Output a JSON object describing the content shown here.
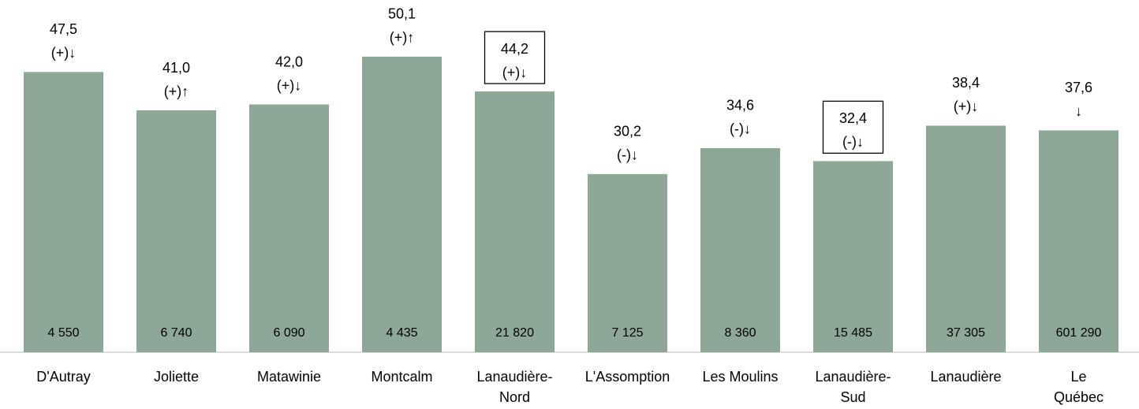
{
  "chart_data": {
    "type": "bar",
    "categories": [
      [
        "D'Autray"
      ],
      [
        "Joliette"
      ],
      [
        "Matawinie"
      ],
      [
        "Montcalm"
      ],
      [
        "Lanaudière-",
        "Nord"
      ],
      [
        "L'Assomption"
      ],
      [
        "Les Moulins"
      ],
      [
        "Lanaudière-",
        "Sud"
      ],
      [
        "Lanaudière"
      ],
      [
        "Le",
        "Québec"
      ]
    ],
    "values": [
      47.5,
      41.0,
      42.0,
      50.1,
      44.2,
      30.2,
      34.6,
      32.4,
      38.4,
      37.6
    ],
    "value_labels": [
      "47,5",
      "41,0",
      "42,0",
      "50,1",
      "44,2",
      "30,2",
      "34,6",
      "32,4",
      "38,4",
      "37,6"
    ],
    "annotations": [
      "(+)↓",
      "(+)↑",
      "(+)↓",
      "(+)↑",
      "(+)↓",
      "(-)↓",
      "(-)↓",
      "(-)↓",
      "(+)↓",
      "↓"
    ],
    "boxed": [
      false,
      false,
      false,
      false,
      true,
      false,
      false,
      true,
      false,
      false
    ],
    "count_labels": [
      "4 550",
      "6 740",
      "6 090",
      "4 435",
      "21 820",
      "7 125",
      "8 360",
      "15 485",
      "37 305",
      "601 290"
    ],
    "color": "#8ea898",
    "ylim": [
      0,
      59.7
    ]
  }
}
